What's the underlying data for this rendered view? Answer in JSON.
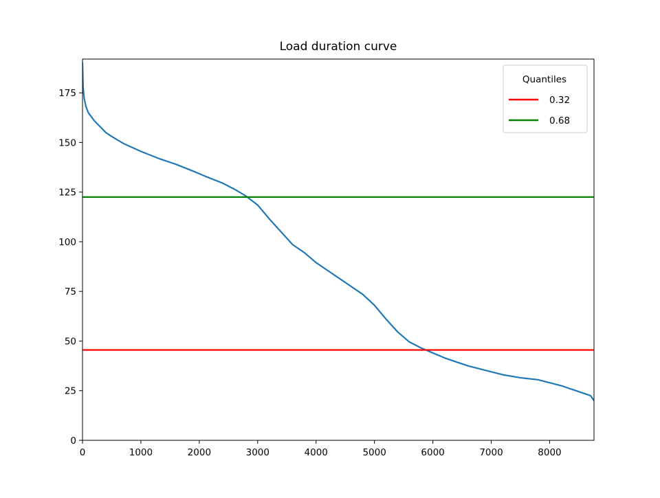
{
  "chart_data": {
    "type": "line",
    "title": "Load duration curve",
    "xlabel": "",
    "ylabel": "",
    "xlim": [
      0,
      8760
    ],
    "ylim": [
      0,
      192
    ],
    "xticks": [
      0,
      1000,
      2000,
      3000,
      4000,
      5000,
      6000,
      7000,
      8000
    ],
    "yticks": [
      0,
      25,
      50,
      75,
      100,
      125,
      150,
      175
    ],
    "grid": false,
    "legend": {
      "title": "Quantiles",
      "placement": "top-right",
      "entries": [
        {
          "label": "0.32",
          "color": "#ff0000"
        },
        {
          "label": "0.68",
          "color": "#008000"
        }
      ]
    },
    "hlines": [
      {
        "name": "0.32",
        "y": 45.5,
        "color": "#ff0000"
      },
      {
        "name": "0.68",
        "y": 122.5,
        "color": "#008000"
      }
    ],
    "series": [
      {
        "color": "#1f77b4",
        "x": [
          0,
          10,
          30,
          60,
          100,
          200,
          300,
          400,
          500,
          700,
          1000,
          1300,
          1600,
          1900,
          2100,
          2400,
          2600,
          2800,
          3000,
          3200,
          3400,
          3600,
          3800,
          4000,
          4200,
          4400,
          4600,
          4800,
          5000,
          5200,
          5400,
          5500,
          5600,
          5800,
          6000,
          6200,
          6400,
          6600,
          6800,
          7000,
          7200,
          7500,
          7800,
          8000,
          8200,
          8400,
          8600,
          8700,
          8760
        ],
        "y": [
          190,
          178,
          172,
          168,
          165,
          161,
          158,
          155,
          153,
          149.5,
          145.5,
          142,
          139,
          135.5,
          133,
          129.5,
          126.5,
          123,
          118.5,
          111.5,
          105,
          98.5,
          94.5,
          89.5,
          85.5,
          81.5,
          77.5,
          73.5,
          68,
          61,
          54.5,
          52,
          49.5,
          46.5,
          44,
          41.5,
          39.5,
          37.5,
          36,
          34.5,
          33,
          31.5,
          30.5,
          29,
          27.5,
          25.5,
          23.5,
          22.5,
          20
        ]
      }
    ]
  }
}
